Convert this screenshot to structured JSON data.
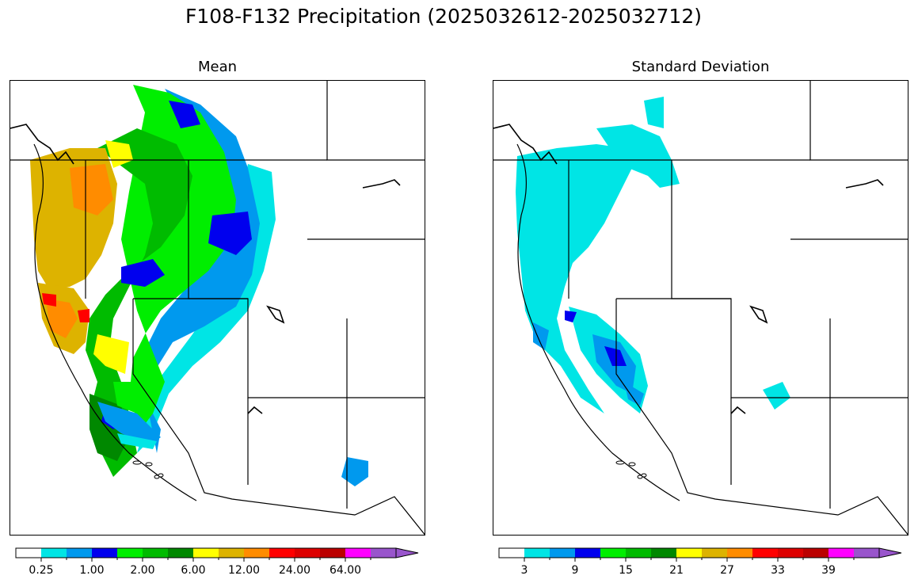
{
  "title": "F108-F132 Precipitation (2025032612-2025032712)",
  "panels": [
    {
      "title": "Mean"
    },
    {
      "title": "Standard Deviation"
    }
  ],
  "colorbar_colors": [
    "#ffffff",
    "#00e5e5",
    "#0099ee",
    "#0000ee",
    "#00ee00",
    "#00bb00",
    "#008800",
    "#ffff00",
    "#ddb300",
    "#ff8c00",
    "#ff0000",
    "#dd0000",
    "#bb0000",
    "#ff00ff",
    "#9955cc"
  ],
  "mean_colorbar": {
    "tick_labels": [
      "0.25",
      "1.00",
      "2.00",
      "6.00",
      "12.00",
      "24.00",
      "64.00"
    ]
  },
  "sd_colorbar": {
    "tick_labels": [
      "3",
      "9",
      "15",
      "21",
      "27",
      "33",
      "39"
    ]
  },
  "legend_colors": {
    "boundary": "#000000",
    "land_no_precip": "#ffffff"
  }
}
